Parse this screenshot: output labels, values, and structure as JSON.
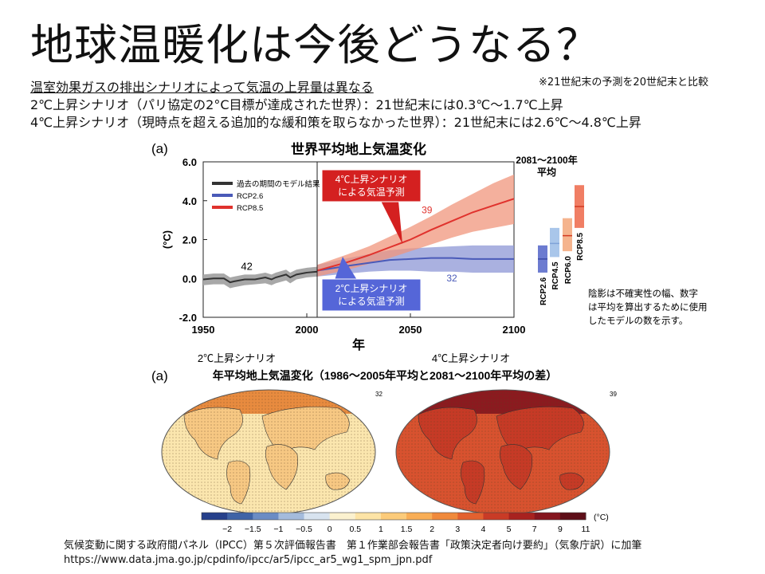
{
  "header": {
    "title": "地球温暖化は今後どうなる？",
    "note": "※21世紀末の予測を20世紀末と比較"
  },
  "intro": {
    "lead": "温室効果ガスの排出シナリオによって気温の上昇量は異なる",
    "line_2c": "2℃上昇シナリオ（パリ協定の2°C目標が達成された世界）：21世紀末には0.3℃～1.7℃上昇",
    "line_4c": "4℃上昇シナリオ（現時点を超える追加的な緩和策を取らなかった世界）：21世紀末には2.6℃～4.8℃上昇"
  },
  "chart_data": [
    {
      "type": "line",
      "panel_label": "(a)",
      "title": "世界平均地上気温変化",
      "xlabel": "年",
      "ylabel": "(°C)",
      "xlim": [
        1950,
        2100
      ],
      "ylim": [
        -2.0,
        6.0
      ],
      "x_ticks": [
        "1950",
        "2000",
        "2050",
        "2100"
      ],
      "y_ticks": [
        "-2.0",
        "0.0",
        "2.0",
        "4.0",
        "6.0"
      ],
      "legend": {
        "placement": "top-left",
        "entries": [
          "過去の期間のモデル結果",
          "RCP2.6",
          "RCP8.5"
        ]
      },
      "series": [
        {
          "name": "過去の期間のモデル結果",
          "color": "#333333",
          "band_color": "#a8a8a8",
          "model_count": "42",
          "x": [
            1950,
            1955,
            1960,
            1963,
            1965,
            1970,
            1975,
            1980,
            1983,
            1985,
            1990,
            1992,
            1995,
            2000,
            2005
          ],
          "y": [
            -0.05,
            0.0,
            0.0,
            -0.2,
            -0.15,
            -0.05,
            -0.05,
            0.05,
            -0.05,
            0.05,
            0.2,
            0.05,
            0.2,
            0.3,
            0.35
          ],
          "lower": [
            -0.35,
            -0.3,
            -0.3,
            -0.5,
            -0.45,
            -0.35,
            -0.3,
            -0.25,
            -0.35,
            -0.25,
            -0.1,
            -0.25,
            -0.05,
            0.05,
            0.1
          ],
          "upper": [
            0.2,
            0.25,
            0.25,
            0.05,
            0.1,
            0.2,
            0.2,
            0.3,
            0.2,
            0.3,
            0.45,
            0.3,
            0.45,
            0.55,
            0.6
          ]
        },
        {
          "name": "RCP2.6",
          "color": "#4a5ab8",
          "band_color": "#8d97d6",
          "model_count": "32",
          "x": [
            2005,
            2020,
            2030,
            2040,
            2050,
            2060,
            2070,
            2080,
            2090,
            2100
          ],
          "y": [
            0.4,
            0.65,
            0.8,
            0.95,
            1.0,
            1.05,
            1.05,
            1.0,
            1.0,
            1.0
          ],
          "lower": [
            0.1,
            0.25,
            0.35,
            0.4,
            0.4,
            0.35,
            0.35,
            0.3,
            0.3,
            0.3
          ],
          "upper": [
            0.7,
            1.05,
            1.25,
            1.45,
            1.55,
            1.6,
            1.65,
            1.7,
            1.7,
            1.7
          ]
        },
        {
          "name": "RCP8.5",
          "color": "#e0322d",
          "band_color": "#f0967c",
          "model_count": "39",
          "x": [
            2005,
            2020,
            2030,
            2040,
            2050,
            2060,
            2070,
            2080,
            2090,
            2100
          ],
          "y": [
            0.4,
            0.85,
            1.2,
            1.6,
            2.0,
            2.5,
            2.95,
            3.4,
            3.75,
            4.1
          ],
          "lower": [
            0.1,
            0.45,
            0.75,
            1.05,
            1.4,
            1.75,
            2.1,
            2.4,
            2.6,
            2.8
          ],
          "upper": [
            0.7,
            1.25,
            1.65,
            2.15,
            2.65,
            3.2,
            3.8,
            4.35,
            4.9,
            5.35
          ]
        }
      ],
      "annotations": [
        {
          "text": "4℃上昇シナリオ\nによる気温予測",
          "color": "#d42020"
        },
        {
          "text": "2℃上昇シナリオ\nによる気温予測",
          "color": "#5566d8"
        }
      ],
      "side_panel": {
        "title": "2081～2100年\n平均",
        "bars": [
          {
            "name": "RCP2.6",
            "low": 0.3,
            "mean": 1.0,
            "high": 1.7,
            "color": "#6c7bd0"
          },
          {
            "name": "RCP4.5",
            "low": 1.1,
            "mean": 1.8,
            "high": 2.6,
            "color": "#a9c6ea"
          },
          {
            "name": "RCP6.0",
            "low": 1.4,
            "mean": 2.2,
            "high": 3.1,
            "color": "#f5b48e"
          },
          {
            "name": "RCP8.5",
            "low": 2.6,
            "mean": 3.7,
            "high": 4.8,
            "color": "#f07e64"
          }
        ]
      },
      "shade_note": "陰影は不確実性の幅、数字\nは平均を算出するために使用\nしたモデルの数を示す。"
    },
    {
      "type": "heatmap",
      "panel_label": "(a)",
      "title": "年平均地上気温変化（1986～2005年平均と2081～2100年平均の差）",
      "maps": [
        {
          "label": "2℃上昇シナリオ",
          "model_count": "32"
        },
        {
          "label": "4℃上昇シナリオ",
          "model_count": "39"
        }
      ],
      "colorbar": {
        "unit": "(°C)",
        "ticks": [
          "−2",
          "−1.5",
          "−1",
          "−0.5",
          "0",
          "0.5",
          "1",
          "1.5",
          "2",
          "3",
          "4",
          "5",
          "7",
          "9",
          "11"
        ],
        "colors": [
          "#26408b",
          "#3f63a6",
          "#6b8cc4",
          "#a4bbdc",
          "#d8e3ef",
          "#fbf1cf",
          "#fde4a6",
          "#fccb7a",
          "#f9ae56",
          "#f08a3c",
          "#e3612f",
          "#c93b26",
          "#a8221f",
          "#85161f",
          "#5e0e18"
        ]
      }
    }
  ],
  "footer": {
    "source": "気候変動に関する政府間パネル（IPCC）第５次評価報告書　第１作業部会報告書「政策決定者向け要約」（気象庁訳）に加筆",
    "url": "https://www.data.jma.go.jp/cpdinfo/ipcc/ar5/ipcc_ar5_wg1_spm_jpn.pdf"
  }
}
